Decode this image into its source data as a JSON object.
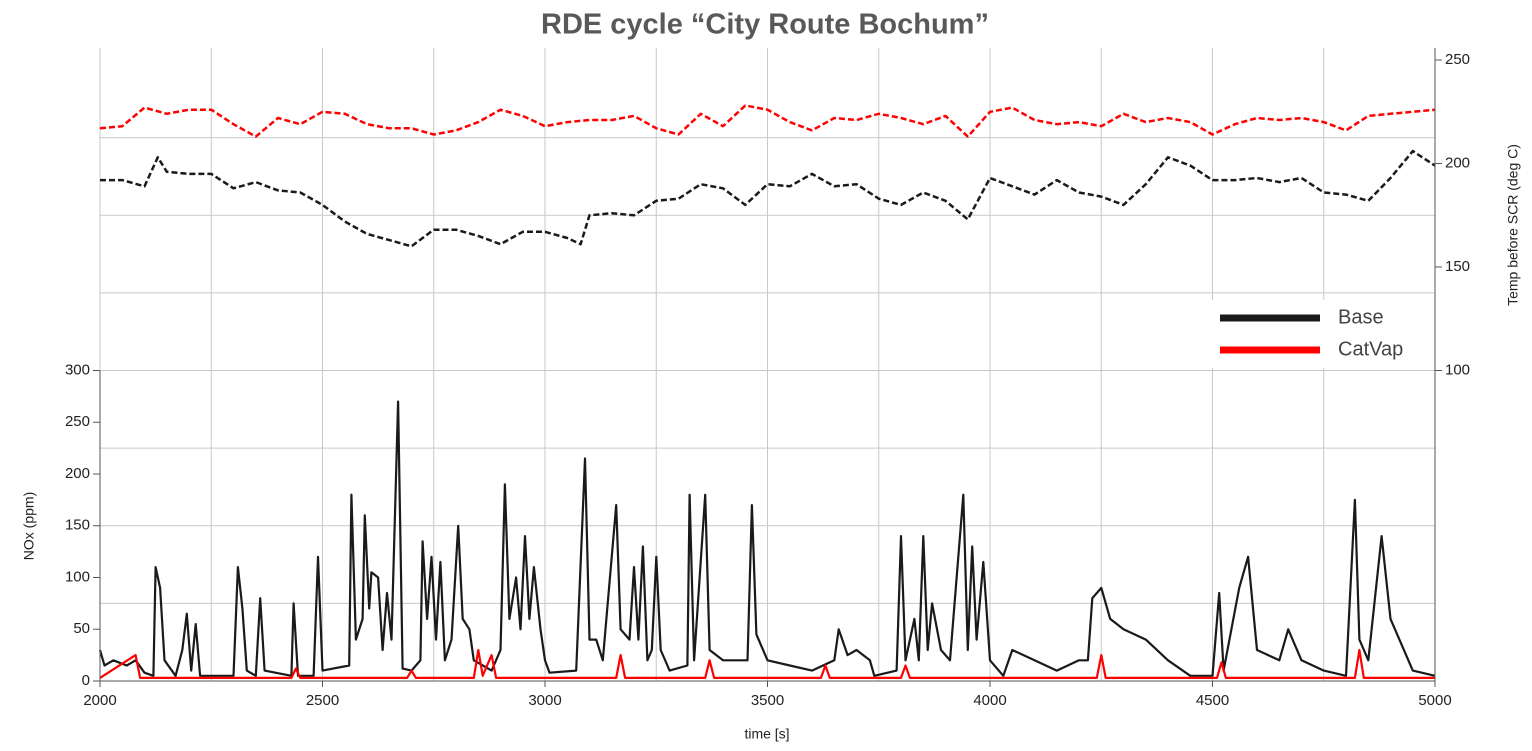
{
  "chart_data": {
    "type": "line",
    "title": "RDE cycle “City Route Bochum”",
    "xlabel": "time [s]",
    "ylabel": "NOx (ppm)",
    "y2label": "Temp before SCR (deg C)",
    "xlim": [
      2000,
      5000
    ],
    "xticks": [
      2000,
      2500,
      3000,
      3500,
      4000,
      4500,
      5000
    ],
    "xgrid": [
      2250,
      2500,
      2750,
      3000,
      3250,
      3500,
      3750,
      4000,
      4250,
      4500,
      4750
    ],
    "ylim": [
      0,
      600
    ],
    "yticks": [
      0,
      50,
      100,
      150,
      200,
      250,
      300
    ],
    "ygrid": [
      75,
      150,
      225,
      300,
      375,
      450,
      525
    ],
    "y2lim": [
      -50,
      250
    ],
    "y2ticks": [
      100,
      150,
      200,
      250
    ],
    "grid": true,
    "legend": "right",
    "legend_entries": [
      {
        "name": "Base",
        "color": "#1a1a1a"
      },
      {
        "name": "CatVap",
        "color": "#ff0000"
      }
    ],
    "series": [
      {
        "color": "#1a1a1a",
        "style": "solid",
        "x": [
          2000,
          2010,
          2030,
          2060,
          2080,
          2100,
          2120,
          2125,
          2135,
          2145,
          2170,
          2185,
          2195,
          2205,
          2215,
          2225,
          2300,
          2310,
          2320,
          2330,
          2350,
          2360,
          2370,
          2430,
          2435,
          2445,
          2480,
          2490,
          2500,
          2560,
          2565,
          2575,
          2590,
          2595,
          2605,
          2610,
          2625,
          2635,
          2645,
          2655,
          2670,
          2680,
          2700,
          2720,
          2725,
          2735,
          2745,
          2755,
          2765,
          2775,
          2790,
          2805,
          2815,
          2830,
          2840,
          2880,
          2900,
          2910,
          2920,
          2935,
          2945,
          2955,
          2965,
          2975,
          2990,
          3000,
          3010,
          3070,
          3090,
          3100,
          3115,
          3130,
          3160,
          3170,
          3190,
          3200,
          3210,
          3220,
          3230,
          3240,
          3250,
          3260,
          3280,
          3320,
          3325,
          3335,
          3360,
          3370,
          3400,
          3455,
          3465,
          3475,
          3500,
          3550,
          3600,
          3650,
          3660,
          3680,
          3700,
          3730,
          3740,
          3790,
          3800,
          3810,
          3830,
          3840,
          3850,
          3860,
          3870,
          3890,
          3910,
          3940,
          3950,
          3960,
          3970,
          3985,
          4000,
          4030,
          4050,
          4100,
          4150,
          4200,
          4220,
          4230,
          4250,
          4270,
          4300,
          4350,
          4400,
          4450,
          4500,
          4515,
          4525,
          4560,
          4580,
          4600,
          4650,
          4670,
          4700,
          4750,
          4800,
          4820,
          4830,
          4850,
          4880,
          4900,
          4950,
          5000
        ],
        "values": [
          30,
          15,
          20,
          15,
          20,
          8,
          5,
          110,
          90,
          20,
          5,
          30,
          65,
          10,
          55,
          5,
          5,
          110,
          70,
          10,
          5,
          80,
          10,
          5,
          75,
          5,
          5,
          120,
          10,
          15,
          180,
          40,
          60,
          160,
          70,
          105,
          100,
          30,
          85,
          40,
          270,
          12,
          10,
          20,
          135,
          60,
          120,
          40,
          115,
          20,
          40,
          150,
          60,
          50,
          20,
          10,
          30,
          190,
          60,
          100,
          50,
          140,
          60,
          110,
          50,
          20,
          8,
          10,
          215,
          40,
          40,
          20,
          170,
          50,
          40,
          110,
          40,
          130,
          20,
          30,
          120,
          30,
          10,
          15,
          180,
          20,
          180,
          30,
          20,
          20,
          170,
          45,
          20,
          15,
          10,
          20,
          50,
          25,
          30,
          20,
          5,
          10,
          140,
          20,
          60,
          20,
          140,
          30,
          75,
          30,
          20,
          180,
          30,
          130,
          40,
          115,
          20,
          5,
          30,
          20,
          10,
          20,
          20,
          80,
          90,
          60,
          50,
          40,
          20,
          5,
          5,
          85,
          10,
          90,
          120,
          30,
          20,
          50,
          20,
          10,
          5,
          175,
          40,
          20,
          140,
          60,
          10,
          5
        ]
      },
      {
        "color": "#ff0000",
        "style": "solid",
        "x": [
          2000,
          2080,
          2090,
          2430,
          2440,
          2450,
          2690,
          2700,
          2710,
          2840,
          2850,
          2860,
          2880,
          2890,
          3160,
          3170,
          3180,
          3360,
          3370,
          3380,
          3620,
          3630,
          3640,
          3800,
          3810,
          3820,
          4240,
          4250,
          4260,
          4510,
          4520,
          4530,
          4820,
          4830,
          4840,
          5000
        ],
        "values": [
          3,
          25,
          3,
          3,
          12,
          3,
          3,
          10,
          3,
          3,
          30,
          5,
          25,
          3,
          3,
          25,
          3,
          3,
          20,
          3,
          3,
          15,
          3,
          3,
          15,
          3,
          3,
          25,
          3,
          3,
          18,
          3,
          3,
          30,
          3,
          3
        ]
      },
      {
        "color": "#1a1a1a",
        "style": "dashed",
        "axis": "y2",
        "x": [
          2000,
          2050,
          2100,
          2130,
          2150,
          2200,
          2250,
          2300,
          2350,
          2400,
          2450,
          2500,
          2550,
          2600,
          2650,
          2700,
          2750,
          2800,
          2850,
          2900,
          2950,
          3000,
          3050,
          3080,
          3100,
          3150,
          3200,
          3250,
          3300,
          3350,
          3400,
          3450,
          3500,
          3550,
          3600,
          3650,
          3700,
          3750,
          3800,
          3850,
          3900,
          3950,
          4000,
          4050,
          4100,
          4150,
          4200,
          4250,
          4300,
          4350,
          4400,
          4450,
          4500,
          4550,
          4600,
          4650,
          4700,
          4750,
          4800,
          4850,
          4900,
          4950,
          5000
        ],
        "values": [
          192,
          192,
          189,
          203,
          196,
          195,
          195,
          188,
          191,
          187,
          186,
          180,
          172,
          166,
          163,
          160,
          168,
          168,
          165,
          161,
          167,
          167,
          164,
          161,
          175,
          176,
          175,
          182,
          183,
          190,
          188,
          180,
          190,
          189,
          195,
          189,
          190,
          183,
          180,
          186,
          182,
          173,
          193,
          189,
          185,
          192,
          186,
          184,
          180,
          190,
          203,
          199,
          192,
          192,
          193,
          191,
          193,
          186,
          185,
          182,
          193,
          206,
          199
        ]
      },
      {
        "color": "#ff0000",
        "style": "dashed",
        "axis": "y2",
        "x": [
          2000,
          2050,
          2100,
          2150,
          2200,
          2250,
          2300,
          2350,
          2400,
          2450,
          2500,
          2550,
          2600,
          2650,
          2700,
          2750,
          2800,
          2850,
          2900,
          2950,
          3000,
          3050,
          3100,
          3150,
          3200,
          3250,
          3300,
          3350,
          3400,
          3450,
          3500,
          3550,
          3600,
          3650,
          3700,
          3750,
          3800,
          3850,
          3900,
          3950,
          4000,
          4050,
          4100,
          4150,
          4200,
          4250,
          4300,
          4350,
          4400,
          4450,
          4500,
          4550,
          4600,
          4650,
          4700,
          4750,
          4800,
          4850,
          4900,
          4950,
          5000
        ],
        "values": [
          217,
          218,
          227,
          224,
          226,
          226,
          219,
          213,
          222,
          219,
          225,
          224,
          219,
          217,
          217,
          214,
          216,
          220,
          226,
          223,
          218,
          220,
          221,
          221,
          223,
          217,
          214,
          224,
          218,
          228,
          226,
          220,
          216,
          222,
          221,
          224,
          222,
          219,
          223,
          213,
          225,
          227,
          221,
          219,
          220,
          218,
          224,
          220,
          222,
          220,
          214,
          219,
          222,
          221,
          222,
          220,
          216,
          223,
          224,
          225,
          226
        ]
      }
    ]
  }
}
